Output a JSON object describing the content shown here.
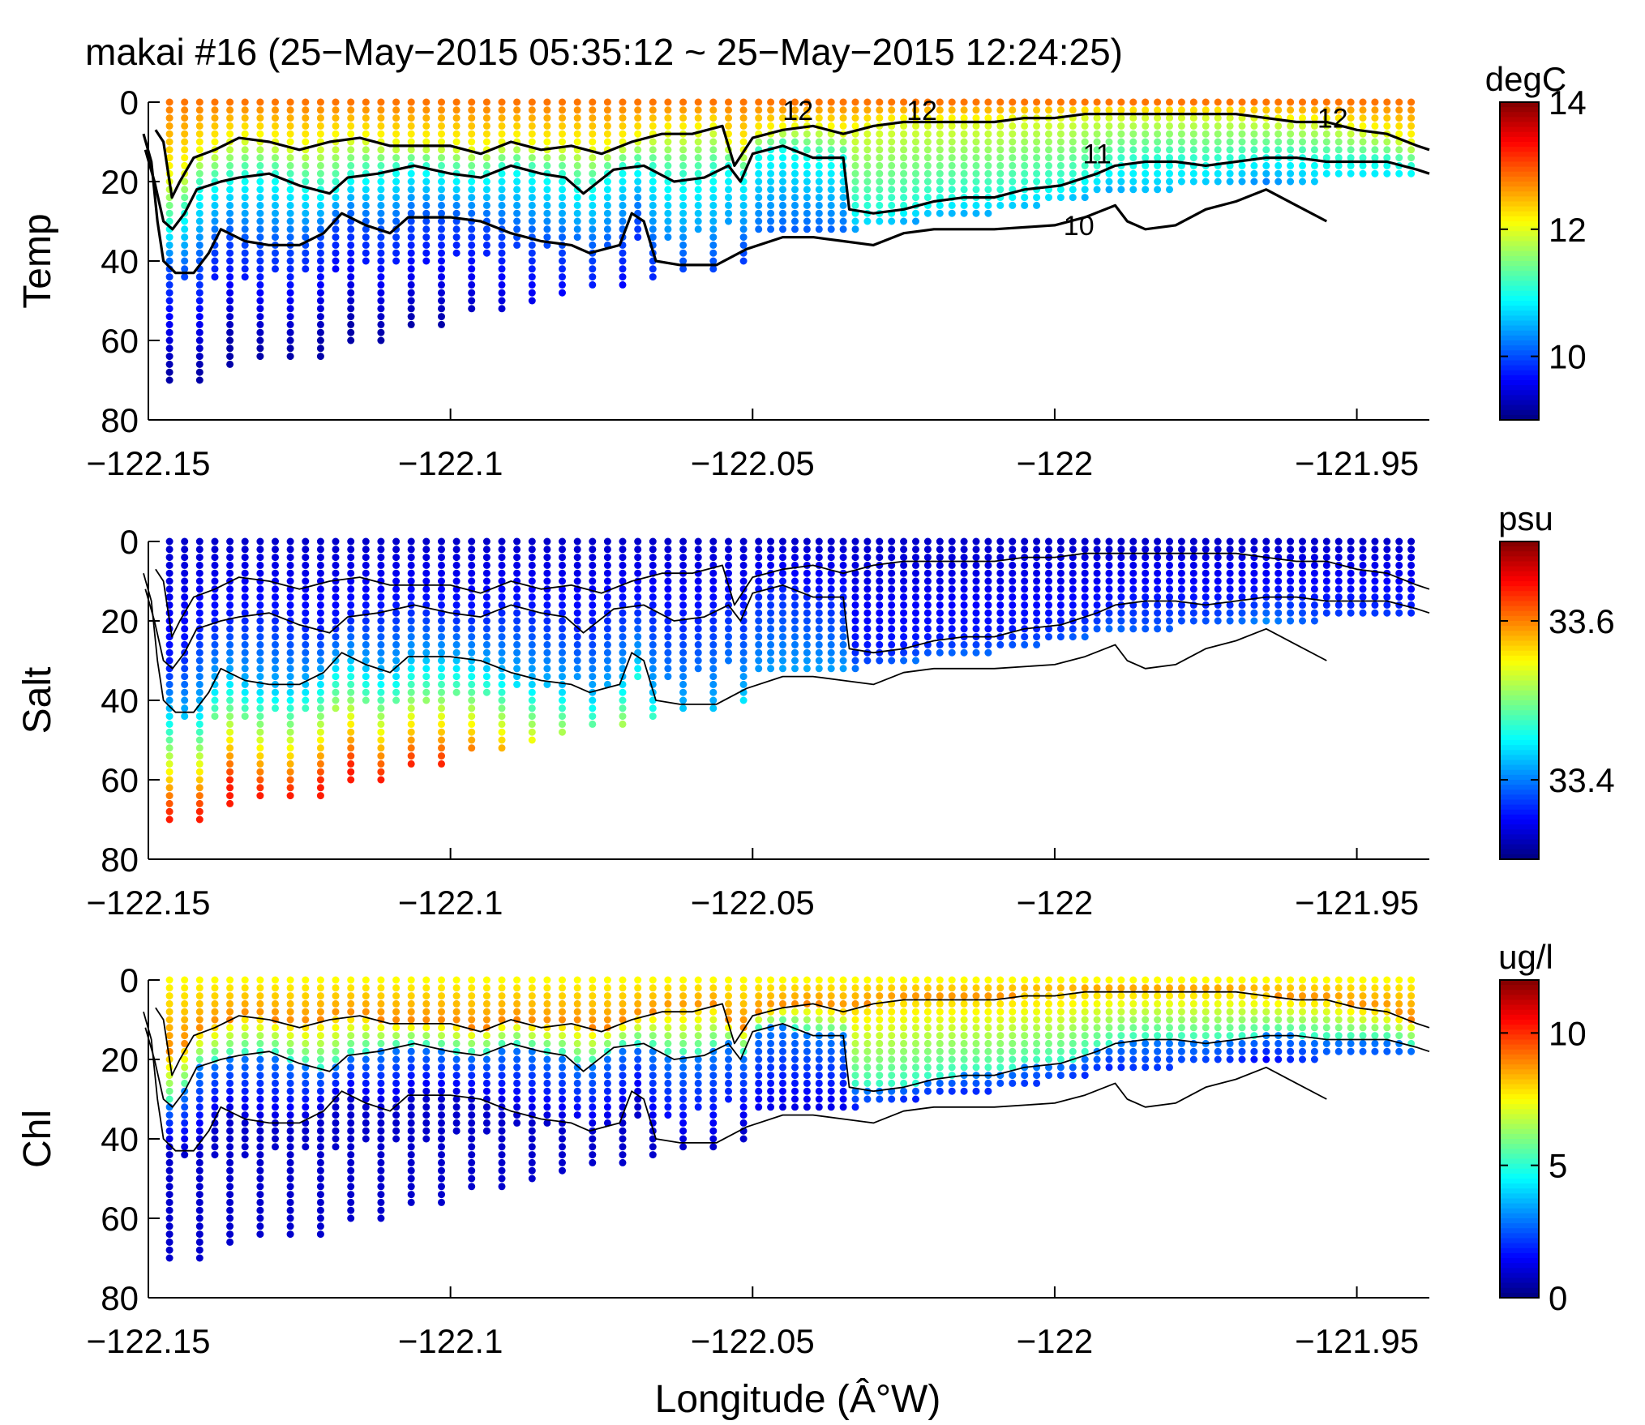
{
  "chart_data": {
    "title": "makai #16 (25−May−2015 05:35:12 ~ 25−May−2015 12:24:25)",
    "xlabel": "Longitude (Â°W)",
    "xlim": [
      -122.15,
      -121.938
    ],
    "xticks": [
      -122.15,
      -122.1,
      -122.05,
      -122,
      -121.95
    ],
    "xtick_labels": [
      "−122.15",
      "−122.1",
      "−122.05",
      "−122",
      "−121.95"
    ],
    "ylim": [
      0,
      80
    ],
    "yticks": [
      0,
      20,
      40,
      60,
      80
    ],
    "ytick_labels": [
      "0",
      "20",
      "40",
      "60",
      "80"
    ],
    "colormap": "jet",
    "contour_lines": [
      {
        "level": "12",
        "label": "12",
        "points": [
          [
            -122.1488,
            7
          ],
          [
            -122.1475,
            10
          ],
          [
            -122.1461,
            24
          ],
          [
            -122.1448,
            20
          ],
          [
            -122.1425,
            14
          ],
          [
            -122.139,
            12
          ],
          [
            -122.135,
            9
          ],
          [
            -122.13,
            10
          ],
          [
            -122.125,
            12
          ],
          [
            -122.12,
            10
          ],
          [
            -122.115,
            9
          ],
          [
            -122.11,
            11
          ],
          [
            -122.1,
            11
          ],
          [
            -122.095,
            13
          ],
          [
            -122.09,
            10
          ],
          [
            -122.085,
            12
          ],
          [
            -122.08,
            11
          ],
          [
            -122.075,
            13
          ],
          [
            -122.07,
            10
          ],
          [
            -122.065,
            8
          ],
          [
            -122.06,
            8
          ],
          [
            -122.055,
            6
          ],
          [
            -122.053,
            16
          ],
          [
            -122.05,
            9
          ],
          [
            -122.045,
            7
          ],
          [
            -122.04,
            6
          ],
          [
            -122.035,
            8
          ],
          [
            -122.03,
            6
          ],
          [
            -122.025,
            5
          ],
          [
            -122.02,
            5
          ],
          [
            -122.015,
            5
          ],
          [
            -122.01,
            5
          ],
          [
            -122.005,
            4
          ],
          [
            -122,
            4
          ],
          [
            -121.995,
            3
          ],
          [
            -121.99,
            3
          ],
          [
            -121.98,
            3
          ],
          [
            -121.97,
            3
          ],
          [
            -121.965,
            4
          ],
          [
            -121.96,
            5
          ],
          [
            -121.955,
            5
          ],
          [
            -121.95,
            7
          ],
          [
            -121.945,
            8
          ],
          [
            -121.94,
            11
          ],
          [
            -121.938,
            12
          ]
        ]
      },
      {
        "level": "11",
        "label": "11",
        "points": [
          [
            -122.1505,
            12
          ],
          [
            -122.149,
            20
          ],
          [
            -122.1475,
            30
          ],
          [
            -122.146,
            32
          ],
          [
            -122.144,
            28
          ],
          [
            -122.142,
            22
          ],
          [
            -122.138,
            20
          ],
          [
            -122.135,
            19
          ],
          [
            -122.13,
            18
          ],
          [
            -122.125,
            21
          ],
          [
            -122.12,
            23
          ],
          [
            -122.117,
            19
          ],
          [
            -122.112,
            18
          ],
          [
            -122.106,
            16
          ],
          [
            -122.1,
            18
          ],
          [
            -122.095,
            19
          ],
          [
            -122.09,
            16
          ],
          [
            -122.085,
            18
          ],
          [
            -122.081,
            19
          ],
          [
            -122.078,
            23
          ],
          [
            -122.073,
            17
          ],
          [
            -122.068,
            16
          ],
          [
            -122.063,
            20
          ],
          [
            -122.058,
            19
          ],
          [
            -122.054,
            16
          ],
          [
            -122.052,
            20
          ],
          [
            -122.05,
            13
          ],
          [
            -122.045,
            11
          ],
          [
            -122.04,
            14
          ],
          [
            -122.035,
            14
          ],
          [
            -122.034,
            27
          ],
          [
            -122.03,
            28
          ],
          [
            -122.025,
            27
          ],
          [
            -122.02,
            25
          ],
          [
            -122.015,
            24
          ],
          [
            -122.01,
            24
          ],
          [
            -122.005,
            22
          ],
          [
            -121.999,
            21
          ],
          [
            -121.993,
            18
          ],
          [
            -121.99,
            16
          ],
          [
            -121.985,
            15
          ],
          [
            -121.98,
            15
          ],
          [
            -121.975,
            16
          ],
          [
            -121.97,
            15
          ],
          [
            -121.965,
            14
          ],
          [
            -121.96,
            14
          ],
          [
            -121.955,
            15
          ],
          [
            -121.95,
            15
          ],
          [
            -121.945,
            15
          ],
          [
            -121.94,
            17
          ],
          [
            -121.938,
            18
          ]
        ]
      },
      {
        "level": "10",
        "label": "10",
        "points": [
          [
            -122.1508,
            8
          ],
          [
            -122.1495,
            15
          ],
          [
            -122.1485,
            30
          ],
          [
            -122.1475,
            40
          ],
          [
            -122.1455,
            43
          ],
          [
            -122.1425,
            43
          ],
          [
            -122.14,
            38
          ],
          [
            -122.138,
            32
          ],
          [
            -122.134,
            35
          ],
          [
            -122.13,
            36
          ],
          [
            -122.125,
            36
          ],
          [
            -122.121,
            33
          ],
          [
            -122.118,
            28
          ],
          [
            -122.114,
            31
          ],
          [
            -122.11,
            33
          ],
          [
            -122.107,
            29
          ],
          [
            -122.1,
            29
          ],
          [
            -122.095,
            30
          ],
          [
            -122.09,
            33
          ],
          [
            -122.085,
            35
          ],
          [
            -122.08,
            36
          ],
          [
            -122.077,
            38
          ],
          [
            -122.072,
            36
          ],
          [
            -122.07,
            28
          ],
          [
            -122.068,
            30
          ],
          [
            -122.066,
            40
          ],
          [
            -122.062,
            41
          ],
          [
            -122.056,
            41
          ],
          [
            -122.051,
            37
          ],
          [
            -122.045,
            34
          ],
          [
            -122.04,
            34
          ],
          [
            -122.035,
            35
          ],
          [
            -122.03,
            36
          ],
          [
            -122.025,
            33
          ],
          [
            -122.02,
            32
          ],
          [
            -122.01,
            32
          ],
          [
            -122,
            31
          ],
          [
            -121.995,
            29
          ],
          [
            -121.99,
            26
          ],
          [
            -121.988,
            30
          ],
          [
            -121.985,
            32
          ],
          [
            -121.98,
            31
          ],
          [
            -121.975,
            27
          ],
          [
            -121.97,
            25
          ],
          [
            -121.965,
            22
          ],
          [
            -121.96,
            26
          ],
          [
            -121.955,
            30
          ]
        ]
      }
    ],
    "panels": [
      {
        "name": "Temp",
        "ylabel": "Temp",
        "unit": "degC",
        "variable": "temperature",
        "clim": [
          9,
          14
        ],
        "cticks": [
          10,
          12,
          14
        ],
        "ctick_labels": [
          "10",
          "12",
          "14"
        ],
        "contour_label_points": [
          [
            -122.0425,
            2
          ],
          [
            -122.022,
            2
          ],
          [
            -121.993,
            13
          ],
          [
            -121.996,
            31
          ],
          [
            -121.954,
            4
          ]
        ],
        "profile_sample_rule": "surface ~12.5, 11 near contour 11, 10 near contour 10, bottom ~9.3"
      },
      {
        "name": "Salt",
        "ylabel": "Salt",
        "unit": "psu",
        "variable": "salinity",
        "clim": [
          33.3,
          33.7
        ],
        "cticks": [
          33.4,
          33.6
        ],
        "ctick_labels": [
          "33.4",
          "33.6"
        ],
        "contour_label_points": [],
        "profile_sample_rule": "surface ~33.33, increasing with depth to ~33.62 near 70 m"
      },
      {
        "name": "Chl",
        "ylabel": "Chl",
        "unit": "ug/l",
        "variable": "chlorophyll",
        "clim": [
          0,
          12
        ],
        "cticks": [
          0,
          5,
          10
        ],
        "ctick_labels": [
          "0",
          "5",
          "10"
        ],
        "contour_label_points": [],
        "profile_sample_rule": "subsurface maximum ~8 to 10 above contour 11, ~1 below contour 10"
      }
    ],
    "stations": {
      "longitudes": [
        -122.1465,
        -122.144,
        -122.1415,
        -122.139,
        -122.1365,
        -122.134,
        -122.1315,
        -122.129,
        -122.1265,
        -122.124,
        -122.1215,
        -122.119,
        -122.1165,
        -122.114,
        -122.1115,
        -122.109,
        -122.1065,
        -122.104,
        -122.1015,
        -122.099,
        -122.0965,
        -122.094,
        -122.0915,
        -122.089,
        -122.0865,
        -122.084,
        -122.0815,
        -122.079,
        -122.0765,
        -122.074,
        -122.0715,
        -122.069,
        -122.0665,
        -122.064,
        -122.0615,
        -122.059,
        -122.0565,
        -122.054,
        -122.0515,
        -122.049,
        -122.047,
        -122.045,
        -122.043,
        -122.041,
        -122.039,
        -122.037,
        -122.035,
        -122.033,
        -122.031,
        -122.029,
        -122.027,
        -122.025,
        -122.023,
        -122.021,
        -122.019,
        -122.017,
        -122.015,
        -122.013,
        -122.011,
        -122.009,
        -122.007,
        -122.005,
        -122.003,
        -122.001,
        -121.999,
        -121.997,
        -121.995,
        -121.993,
        -121.991,
        -121.989,
        -121.987,
        -121.985,
        -121.983,
        -121.981,
        -121.979,
        -121.977,
        -121.975,
        -121.973,
        -121.971,
        -121.969,
        -121.967,
        -121.965,
        -121.963,
        -121.961,
        -121.959,
        -121.957,
        -121.955,
        -121.953,
        -121.951,
        -121.949,
        -121.947,
        -121.945,
        -121.943,
        -121.941
      ],
      "bottom_depths": [
        70,
        45,
        70,
        45,
        67,
        45,
        65,
        43,
        65,
        42,
        65,
        42,
        60,
        41,
        60,
        40,
        57,
        40,
        57,
        38,
        53,
        38,
        52,
        36,
        50,
        36,
        48,
        35,
        47,
        36,
        46,
        35,
        44,
        34,
        42,
        33,
        42,
        30,
        40,
        33,
        33,
        33,
        33,
        33,
        33,
        32,
        32,
        32,
        31,
        31,
        30,
        30,
        30,
        29,
        29,
        29,
        28,
        28,
        28,
        27,
        27,
        26,
        26,
        25,
        24,
        24,
        24,
        23,
        23,
        23,
        22,
        22,
        22,
        22,
        21,
        21,
        21,
        21,
        21,
        20,
        20,
        20,
        20,
        20,
        20,
        20,
        19,
        19,
        19,
        19,
        19,
        19,
        19,
        19
      ],
      "top_depth": 0
    }
  }
}
